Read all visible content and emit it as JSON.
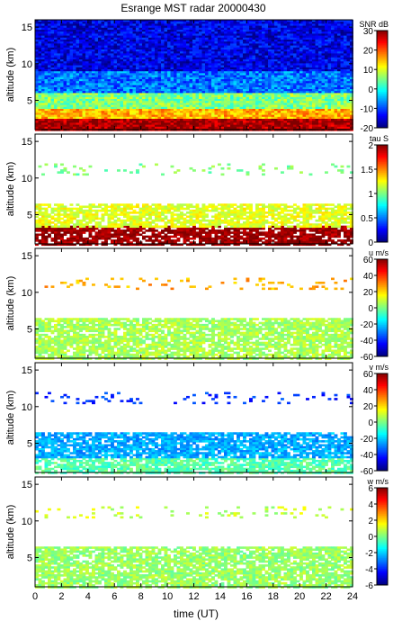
{
  "figure": {
    "title": "Esrange MST radar 20000430",
    "xlabel": "time (UT)",
    "x_ticks": [
      0,
      2,
      4,
      6,
      8,
      10,
      12,
      14,
      16,
      18,
      20,
      22,
      24
    ],
    "xlim": [
      0,
      24
    ]
  },
  "chart_data": [
    {
      "type": "heatmap",
      "ylabel": "altitude (km)",
      "ylim": [
        1,
        16
      ],
      "y_ticks": [
        5,
        10,
        15
      ],
      "colorbar": {
        "label": "SNR dB",
        "range": [
          -20,
          30
        ],
        "ticks": [
          -20,
          -10,
          0,
          10,
          20,
          30
        ]
      },
      "field": [
        {
          "alt_min": 1,
          "alt_max": 2.5,
          "value": 28
        },
        {
          "alt_min": 2.5,
          "alt_max": 4,
          "value": 15
        },
        {
          "alt_min": 4,
          "alt_max": 6,
          "value": 5
        },
        {
          "alt_min": 6,
          "alt_max": 9,
          "value": -8
        },
        {
          "alt_min": 9,
          "alt_max": 16,
          "value": -15
        }
      ]
    },
    {
      "type": "heatmap",
      "ylabel": "altitude (km)",
      "ylim": [
        1,
        16
      ],
      "y_ticks": [
        5,
        10,
        15
      ],
      "colorbar": {
        "label": "tau S",
        "range": [
          0,
          2
        ],
        "ticks": [
          0,
          0.5,
          1,
          1.5,
          2
        ]
      },
      "field": [
        {
          "alt_min": 1,
          "alt_max": 3.5,
          "value": 1.95
        },
        {
          "alt_min": 3.5,
          "alt_max": 6.5,
          "value": 1.2
        },
        {
          "alt_min": 10.5,
          "alt_max": 12,
          "value": 1.0
        }
      ]
    },
    {
      "type": "heatmap",
      "ylabel": "altitude (km)",
      "ylim": [
        1,
        16
      ],
      "y_ticks": [
        5,
        10,
        15
      ],
      "colorbar": {
        "label": "u m/s",
        "range": [
          -60,
          60
        ],
        "ticks": [
          -60,
          -40,
          -20,
          0,
          20,
          40,
          60
        ]
      },
      "field": [
        {
          "alt_min": 1,
          "alt_max": 6.5,
          "value": 5
        },
        {
          "alt_min": 10.5,
          "alt_max": 12,
          "value": 25
        }
      ]
    },
    {
      "type": "heatmap",
      "ylabel": "altitude (km)",
      "ylim": [
        1,
        16
      ],
      "y_ticks": [
        5,
        10,
        15
      ],
      "colorbar": {
        "label": "v m/s",
        "range": [
          -60,
          60
        ],
        "ticks": [
          -60,
          -40,
          -20,
          0,
          20,
          40,
          60
        ]
      },
      "field": [
        {
          "alt_min": 1,
          "alt_max": 3,
          "value": -5
        },
        {
          "alt_min": 3,
          "alt_max": 6.5,
          "value": -25
        },
        {
          "alt_min": 10.5,
          "alt_max": 12,
          "value": -40
        }
      ]
    },
    {
      "type": "heatmap",
      "ylabel": "altitude (km)",
      "ylim": [
        1,
        16
      ],
      "y_ticks": [
        5,
        10,
        15
      ],
      "colorbar": {
        "label": "w m/s",
        "range": [
          -6,
          6
        ],
        "ticks": [
          -6,
          -4,
          -2,
          0,
          2,
          4,
          6
        ]
      },
      "field": [
        {
          "alt_min": 1,
          "alt_max": 6.5,
          "value": 0.3
        },
        {
          "alt_min": 10.5,
          "alt_max": 12,
          "value": 0.8
        }
      ]
    }
  ]
}
